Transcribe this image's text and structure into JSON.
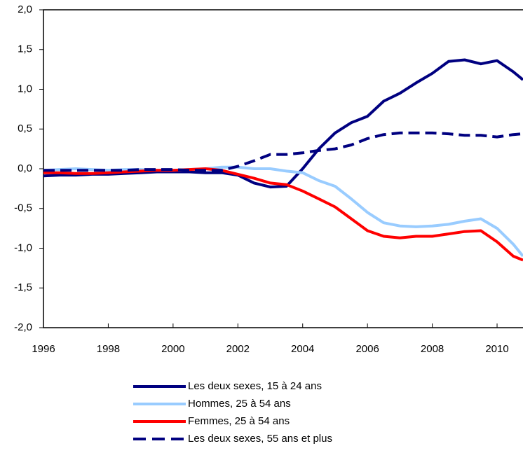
{
  "chart_data": {
    "type": "line",
    "x": [
      1996,
      1996.5,
      1997,
      1997.5,
      1998,
      1998.5,
      1999,
      1999.5,
      2000,
      2000.5,
      2001,
      2001.5,
      2002,
      2002.5,
      2003,
      2003.5,
      2004,
      2004.5,
      2005,
      2005.5,
      2006,
      2006.5,
      2007,
      2007.5,
      2008,
      2008.5,
      2009,
      2009.5,
      2010,
      2010.5,
      2010.8
    ],
    "series": [
      {
        "name": "Les deux sexes, 15 à 24 ans",
        "color": "#000080",
        "dash": false,
        "values": [
          -0.09,
          -0.08,
          -0.08,
          -0.07,
          -0.07,
          -0.06,
          -0.05,
          -0.04,
          -0.04,
          -0.04,
          -0.05,
          -0.05,
          -0.08,
          -0.18,
          -0.23,
          -0.22,
          0.0,
          0.25,
          0.45,
          0.58,
          0.66,
          0.85,
          0.95,
          1.08,
          1.2,
          1.35,
          1.37,
          1.32,
          1.36,
          1.22,
          1.12
        ]
      },
      {
        "name": "Hommes, 25 à 54 ans",
        "color": "#99ccff",
        "dash": false,
        "values": [
          -0.02,
          -0.01,
          0.0,
          -0.01,
          -0.02,
          -0.01,
          -0.01,
          -0.02,
          -0.02,
          -0.01,
          0.0,
          0.02,
          0.02,
          0.0,
          0.0,
          -0.03,
          -0.05,
          -0.15,
          -0.22,
          -0.38,
          -0.55,
          -0.68,
          -0.72,
          -0.73,
          -0.72,
          -0.7,
          -0.66,
          -0.63,
          -0.75,
          -0.95,
          -1.1
        ]
      },
      {
        "name": "Femmes, 25 à 54 ans",
        "color": "#ff0000",
        "dash": false,
        "values": [
          -0.05,
          -0.05,
          -0.06,
          -0.06,
          -0.05,
          -0.04,
          -0.03,
          -0.02,
          -0.02,
          -0.01,
          0.0,
          -0.02,
          -0.07,
          -0.12,
          -0.18,
          -0.2,
          -0.28,
          -0.38,
          -0.48,
          -0.63,
          -0.78,
          -0.85,
          -0.87,
          -0.85,
          -0.85,
          -0.82,
          -0.79,
          -0.78,
          -0.92,
          -1.1,
          -1.15
        ]
      },
      {
        "name": "Les deux sexes, 55 ans et plus",
        "color": "#000080",
        "dash": true,
        "values": [
          -0.02,
          -0.02,
          -0.02,
          -0.02,
          -0.02,
          -0.02,
          -0.01,
          -0.01,
          -0.01,
          -0.02,
          -0.02,
          -0.02,
          0.03,
          0.1,
          0.18,
          0.18,
          0.2,
          0.23,
          0.25,
          0.3,
          0.38,
          0.43,
          0.45,
          0.45,
          0.45,
          0.44,
          0.42,
          0.42,
          0.4,
          0.43,
          0.44
        ]
      }
    ],
    "xlim": [
      1996,
      2010.8
    ],
    "xticks": [
      1996,
      1998,
      2000,
      2002,
      2004,
      2006,
      2008,
      2010
    ],
    "ylim": [
      -2,
      2
    ],
    "yticks": [
      {
        "value": -2,
        "label": "-2,0"
      },
      {
        "value": -1.5,
        "label": "-1,5"
      },
      {
        "value": -1,
        "label": "-1,0"
      },
      {
        "value": -0.5,
        "label": "-0,5"
      },
      {
        "value": 0,
        "label": "0,0"
      },
      {
        "value": 0.5,
        "label": "0,5"
      },
      {
        "value": 1,
        "label": "1,0"
      },
      {
        "value": 1.5,
        "label": "1,5"
      },
      {
        "value": 2,
        "label": "2,0"
      }
    ],
    "grid": false
  }
}
